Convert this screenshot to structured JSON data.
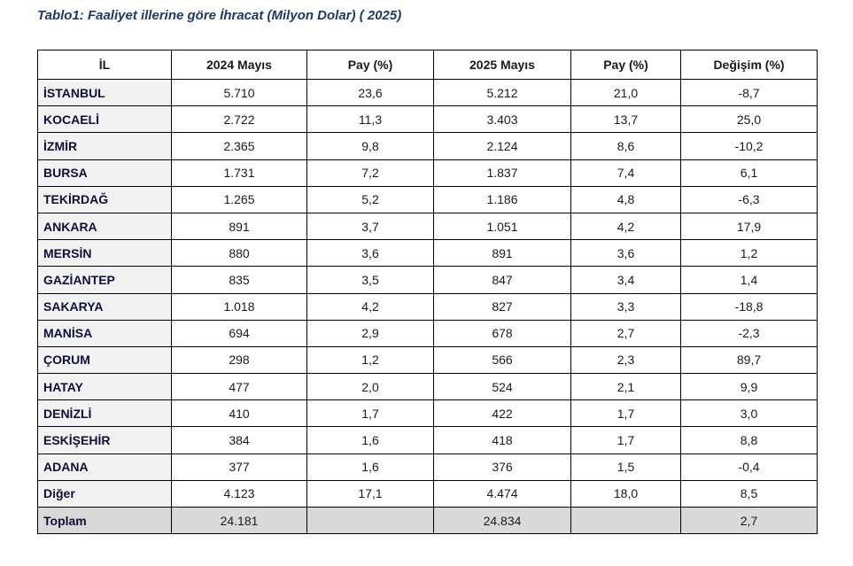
{
  "title": "Tablo1: Faaliyet illerine göre İhracat (Milyon Dolar) ( 2025)",
  "table": {
    "headers": [
      "İL",
      "2024 Mayıs",
      "Pay  (%)",
      "2025 Mayıs",
      "Pay  (%)",
      "Değişim (%)"
    ],
    "rows": [
      [
        "İSTANBUL",
        "5.710",
        "23,6",
        "5.212",
        "21,0",
        "-8,7"
      ],
      [
        "KOCAELİ",
        "2.722",
        "11,3",
        "3.403",
        "13,7",
        "25,0"
      ],
      [
        "İZMİR",
        "2.365",
        "9,8",
        "2.124",
        "8,6",
        "-10,2"
      ],
      [
        "BURSA",
        "1.731",
        "7,2",
        "1.837",
        "7,4",
        "6,1"
      ],
      [
        "TEKİRDAĞ",
        "1.265",
        "5,2",
        "1.186",
        "4,8",
        "-6,3"
      ],
      [
        "ANKARA",
        "891",
        "3,7",
        "1.051",
        "4,2",
        "17,9"
      ],
      [
        "MERSİN",
        "880",
        "3,6",
        "891",
        "3,6",
        "1,2"
      ],
      [
        "GAZİANTEP",
        "835",
        "3,5",
        "847",
        "3,4",
        "1,4"
      ],
      [
        "SAKARYA",
        "1.018",
        "4,2",
        "827",
        "3,3",
        "-18,8"
      ],
      [
        "MANİSA",
        "694",
        "2,9",
        "678",
        "2,7",
        "-2,3"
      ],
      [
        "ÇORUM",
        "298",
        "1,2",
        "566",
        "2,3",
        "89,7"
      ],
      [
        "HATAY",
        "477",
        "2,0",
        "524",
        "2,1",
        "9,9"
      ],
      [
        "DENİZLİ",
        "410",
        "1,7",
        "422",
        "1,7",
        "3,0"
      ],
      [
        "ESKİŞEHİR",
        "384",
        "1,6",
        "418",
        "1,7",
        "8,8"
      ],
      [
        "ADANA",
        "377",
        "1,6",
        "376",
        "1,5",
        "-0,4"
      ],
      [
        "Diğer",
        "4.123",
        "17,1",
        "4.474",
        "18,0",
        "8,5"
      ]
    ],
    "total": [
      "Toplam",
      "24.181",
      "",
      "24.834",
      "",
      "2,7"
    ]
  }
}
